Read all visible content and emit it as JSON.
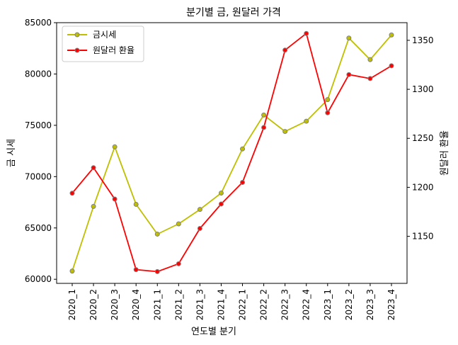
{
  "chart_data": {
    "type": "line",
    "title": "분기별 금, 원달러 가격",
    "xlabel": "연도별 분기",
    "ylabel_left": "금 시세",
    "ylabel_right": "원달러 환율",
    "categories": [
      "2020_1",
      "2020_2",
      "2020_3",
      "2020_4",
      "2021_1",
      "2021_2",
      "2021_3",
      "2021_4",
      "2022_1",
      "2022_2",
      "2022_3",
      "2022_4",
      "2023_1",
      "2023_2",
      "2023_3",
      "2023_4"
    ],
    "ylim_left": [
      59600,
      85000
    ],
    "ylim_right": [
      1102,
      1368
    ],
    "yticks_left": [
      60000,
      65000,
      70000,
      75000,
      80000,
      85000
    ],
    "yticks_right": [
      1150,
      1200,
      1250,
      1300,
      1350
    ],
    "legend_position": "upper-left",
    "grid": false,
    "series": [
      {
        "name": "금시세",
        "axis": "left",
        "color": "#bfbf00",
        "marker_edge": "#808080",
        "values": [
          60800,
          67100,
          72900,
          67300,
          64400,
          65400,
          66800,
          68400,
          72700,
          76000,
          74400,
          75400,
          77500,
          83500,
          81400,
          83800
        ]
      },
      {
        "name": "원달러 환율",
        "axis": "right",
        "color": "#ff0000",
        "marker_edge": "#808080",
        "values": [
          1194,
          1220,
          1188,
          1116,
          1114,
          1122,
          1158,
          1183,
          1205,
          1261,
          1340,
          1357,
          1276,
          1315,
          1311,
          1324
        ]
      }
    ]
  }
}
